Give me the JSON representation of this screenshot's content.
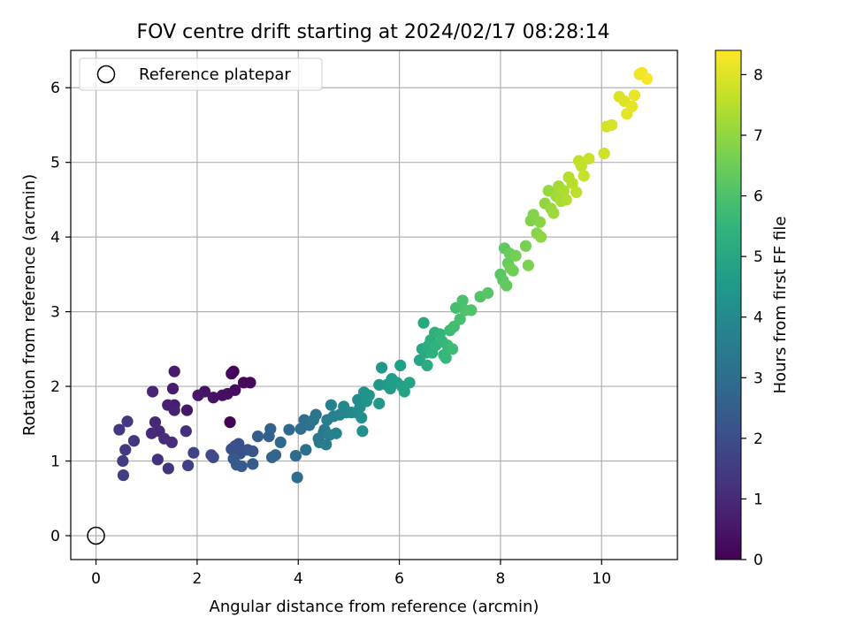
{
  "chart_data": {
    "type": "scatter",
    "title": "FOV centre drift starting at 2024/02/17 08:28:14",
    "xlabel": "Angular distance from reference (arcmin)",
    "ylabel": "Rotation from reference (arcmin)",
    "xlim": [
      -0.5,
      11.5
    ],
    "ylim": [
      -0.32,
      6.5
    ],
    "xticks": [
      0,
      2,
      4,
      6,
      8,
      10
    ],
    "yticks": [
      0,
      1,
      2,
      3,
      4,
      5,
      6
    ],
    "grid": true,
    "legend": {
      "placement": "top-left",
      "entries": [
        {
          "label": "Reference platepar",
          "marker": "open-circle"
        }
      ]
    },
    "reference_point": {
      "x": 0,
      "y": 0
    },
    "colorbar": {
      "label": "Hours from first FF file",
      "range": [
        0,
        8.4
      ],
      "ticks": [
        0,
        1,
        2,
        3,
        4,
        5,
        6,
        7,
        8
      ],
      "colormap": "viridis"
    },
    "colormap_stops": [
      "#440154",
      "#482878",
      "#3e4989",
      "#31688e",
      "#26828e",
      "#1f9e89",
      "#35b779",
      "#6ece58",
      "#b5de2b",
      "#fde725"
    ],
    "points": [
      [
        2.65,
        1.52,
        0.1
      ],
      [
        2.72,
        2.2,
        0.1
      ],
      [
        2.68,
        2.17,
        0.15
      ],
      [
        2.92,
        2.05,
        0.2
      ],
      [
        3.05,
        2.05,
        0.2
      ],
      [
        2.75,
        1.95,
        0.25
      ],
      [
        2.6,
        1.9,
        0.3
      ],
      [
        2.5,
        1.88,
        0.35
      ],
      [
        2.32,
        1.85,
        0.4
      ],
      [
        2.15,
        1.93,
        0.45
      ],
      [
        2.02,
        1.88,
        0.5
      ],
      [
        1.8,
        1.68,
        0.55
      ],
      [
        1.55,
        2.2,
        0.6
      ],
      [
        1.52,
        1.97,
        0.65
      ],
      [
        1.55,
        1.75,
        0.7
      ],
      [
        1.42,
        1.75,
        0.75
      ],
      [
        1.55,
        1.68,
        0.8
      ],
      [
        1.12,
        1.93,
        0.85
      ],
      [
        1.17,
        1.52,
        0.9
      ],
      [
        1.25,
        1.4,
        0.95
      ],
      [
        1.1,
        1.37,
        1.0
      ],
      [
        1.35,
        1.3,
        1.05
      ],
      [
        1.5,
        1.25,
        1.1
      ],
      [
        1.78,
        1.4,
        1.15
      ],
      [
        1.22,
        1.02,
        1.2
      ],
      [
        1.43,
        0.9,
        1.25
      ],
      [
        0.75,
        1.27,
        1.3
      ],
      [
        0.46,
        1.42,
        1.35
      ],
      [
        0.62,
        1.53,
        1.4
      ],
      [
        0.58,
        1.15,
        1.45
      ],
      [
        0.53,
        1.0,
        1.5
      ],
      [
        0.54,
        0.81,
        1.55
      ],
      [
        1.82,
        0.94,
        1.6
      ],
      [
        1.93,
        1.11,
        1.7
      ],
      [
        2.28,
        1.08,
        1.8
      ],
      [
        2.32,
        1.05,
        1.9
      ],
      [
        2.75,
        1.2,
        2.0
      ],
      [
        2.82,
        1.23,
        2.05
      ],
      [
        2.68,
        1.16,
        2.1
      ],
      [
        2.85,
        1.1,
        2.15
      ],
      [
        3.0,
        1.15,
        2.2
      ],
      [
        3.1,
        1.13,
        2.25
      ],
      [
        2.72,
        1.03,
        2.3
      ],
      [
        2.78,
        0.95,
        2.35
      ],
      [
        2.88,
        0.93,
        2.4
      ],
      [
        3.1,
        0.96,
        2.45
      ],
      [
        3.2,
        1.33,
        2.5
      ],
      [
        3.42,
        1.33,
        2.6
      ],
      [
        3.45,
        1.43,
        2.65
      ],
      [
        3.48,
        1.05,
        2.7
      ],
      [
        3.55,
        1.08,
        2.75
      ],
      [
        3.65,
        1.25,
        2.8
      ],
      [
        3.82,
        1.42,
        2.85
      ],
      [
        3.95,
        1.07,
        2.9
      ],
      [
        3.98,
        0.78,
        2.95
      ],
      [
        4.05,
        1.43,
        3.0
      ],
      [
        4.12,
        1.55,
        3.05
      ],
      [
        4.15,
        1.15,
        3.1
      ],
      [
        4.22,
        1.48,
        3.15
      ],
      [
        4.3,
        1.55,
        3.2
      ],
      [
        4.35,
        1.62,
        3.25
      ],
      [
        4.4,
        1.3,
        3.3
      ],
      [
        4.42,
        1.25,
        3.35
      ],
      [
        4.5,
        1.38,
        3.4
      ],
      [
        4.52,
        1.42,
        3.45
      ],
      [
        4.55,
        1.22,
        3.5
      ],
      [
        4.57,
        1.55,
        3.55
      ],
      [
        4.62,
        1.35,
        3.6
      ],
      [
        4.65,
        1.75,
        3.65
      ],
      [
        4.7,
        1.6,
        3.7
      ],
      [
        4.75,
        1.37,
        3.75
      ],
      [
        4.82,
        1.62,
        3.8
      ],
      [
        4.9,
        1.73,
        3.85
      ],
      [
        4.95,
        1.65,
        3.9
      ],
      [
        5.05,
        1.65,
        3.95
      ],
      [
        5.15,
        1.65,
        4.0
      ],
      [
        5.18,
        1.82,
        4.05
      ],
      [
        5.22,
        1.72,
        4.1
      ],
      [
        5.25,
        1.58,
        4.15
      ],
      [
        5.27,
        1.4,
        4.2
      ],
      [
        5.3,
        1.92,
        4.25
      ],
      [
        5.35,
        1.8,
        4.3
      ],
      [
        5.4,
        1.88,
        4.35
      ],
      [
        5.6,
        2.02,
        4.4
      ],
      [
        5.6,
        1.77,
        4.45
      ],
      [
        5.65,
        2.25,
        4.5
      ],
      [
        5.75,
        2.02,
        4.55
      ],
      [
        5.82,
        1.97,
        4.6
      ],
      [
        5.85,
        2.1,
        4.65
      ],
      [
        5.95,
        2.05,
        4.7
      ],
      [
        6.02,
        2.28,
        4.75
      ],
      [
        6.05,
        2.0,
        4.8
      ],
      [
        6.1,
        1.93,
        4.85
      ],
      [
        6.2,
        2.05,
        4.9
      ],
      [
        6.4,
        2.35,
        4.95
      ],
      [
        6.45,
        2.5,
        5.0
      ],
      [
        6.48,
        2.85,
        5.05
      ],
      [
        6.52,
        2.45,
        5.1
      ],
      [
        6.55,
        2.28,
        5.15
      ],
      [
        6.58,
        2.55,
        5.2
      ],
      [
        6.62,
        2.62,
        5.25
      ],
      [
        6.65,
        2.45,
        5.3
      ],
      [
        6.7,
        2.72,
        5.35
      ],
      [
        6.72,
        2.55,
        5.4
      ],
      [
        6.8,
        2.7,
        5.45
      ],
      [
        6.85,
        2.6,
        5.5
      ],
      [
        6.88,
        2.42,
        5.55
      ],
      [
        6.92,
        2.38,
        5.6
      ],
      [
        6.95,
        2.55,
        5.65
      ],
      [
        7.0,
        2.75,
        5.7
      ],
      [
        7.05,
        2.5,
        5.75
      ],
      [
        7.08,
        2.8,
        5.8
      ],
      [
        7.12,
        3.05,
        5.85
      ],
      [
        7.2,
        2.9,
        5.9
      ],
      [
        7.25,
        3.15,
        5.95
      ],
      [
        7.3,
        3.02,
        6.0
      ],
      [
        7.42,
        3.02,
        6.05
      ],
      [
        7.6,
        3.2,
        6.1
      ],
      [
        7.75,
        3.25,
        6.15
      ],
      [
        8.0,
        3.5,
        6.2
      ],
      [
        8.05,
        3.42,
        6.25
      ],
      [
        8.08,
        3.85,
        6.3
      ],
      [
        8.12,
        3.35,
        6.35
      ],
      [
        8.15,
        3.65,
        6.4
      ],
      [
        8.18,
        3.78,
        6.45
      ],
      [
        8.2,
        3.58,
        6.5
      ],
      [
        8.25,
        3.55,
        6.55
      ],
      [
        8.3,
        3.75,
        6.6
      ],
      [
        8.5,
        3.88,
        6.65
      ],
      [
        8.55,
        3.62,
        6.7
      ],
      [
        8.6,
        4.22,
        6.75
      ],
      [
        8.65,
        4.3,
        6.8
      ],
      [
        8.72,
        4.05,
        6.85
      ],
      [
        8.78,
        4.2,
        6.9
      ],
      [
        8.8,
        4.0,
        6.95
      ],
      [
        8.88,
        4.45,
        7.0
      ],
      [
        8.95,
        4.62,
        7.05
      ],
      [
        9.0,
        4.38,
        7.1
      ],
      [
        9.05,
        4.32,
        7.15
      ],
      [
        9.1,
        4.55,
        7.2
      ],
      [
        9.15,
        4.68,
        7.25
      ],
      [
        9.2,
        4.48,
        7.3
      ],
      [
        9.25,
        4.62,
        7.35
      ],
      [
        9.3,
        4.5,
        7.4
      ],
      [
        9.35,
        4.8,
        7.45
      ],
      [
        9.42,
        4.72,
        7.5
      ],
      [
        9.5,
        4.6,
        7.55
      ],
      [
        9.55,
        5.02,
        7.6
      ],
      [
        9.6,
        4.95,
        7.65
      ],
      [
        9.65,
        4.82,
        7.7
      ],
      [
        9.75,
        5.05,
        7.75
      ],
      [
        10.05,
        5.12,
        7.8
      ],
      [
        10.1,
        5.48,
        7.85
      ],
      [
        10.2,
        5.5,
        7.9
      ],
      [
        10.35,
        5.88,
        7.95
      ],
      [
        10.45,
        5.82,
        8.0
      ],
      [
        10.5,
        5.65,
        8.05
      ],
      [
        10.6,
        5.75,
        8.1
      ],
      [
        10.65,
        5.9,
        8.15
      ],
      [
        10.75,
        6.18,
        8.2
      ],
      [
        10.8,
        6.2,
        8.25
      ],
      [
        10.9,
        6.12,
        8.3
      ]
    ]
  }
}
